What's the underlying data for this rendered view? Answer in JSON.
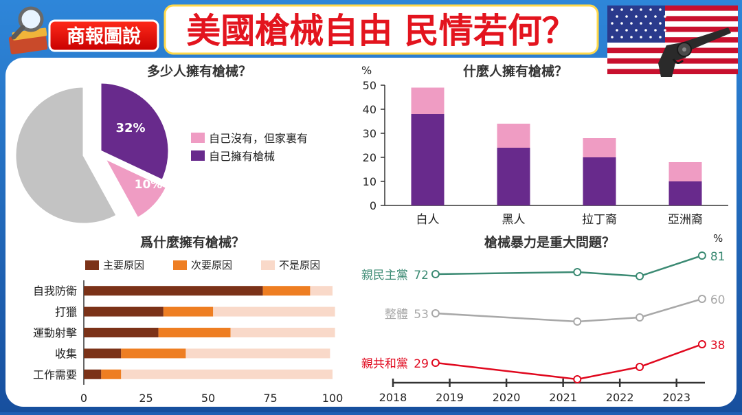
{
  "header": {
    "brand": "商報圖說",
    "title": "美國槍械自由 民情若何？"
  },
  "colors": {
    "purple": "#682a8c",
    "pink": "#ef9cc3",
    "gray": "#c3c3c3",
    "brown": "#7b3218",
    "orange": "#ee7e22",
    "peach": "#f9d9c9",
    "dem": "#3b8a73",
    "overall": "#a8a8a8",
    "rep": "#e0081e"
  },
  "chart_data": [
    {
      "id": "ownership-pie",
      "type": "pie",
      "title": "多少人擁有槍械？",
      "slices": [
        {
          "label": "自己擁有槍械",
          "value": 32,
          "display": "32%"
        },
        {
          "label": "自己沒有，但家裏有",
          "value": 10,
          "display": "10%"
        },
        {
          "label": "",
          "value": 58,
          "display": ""
        }
      ],
      "legend": [
        "自己沒有，但家裏有",
        "自己擁有槍械"
      ]
    },
    {
      "id": "who-owns-bar",
      "type": "bar",
      "title": "什麼人擁有槍械？",
      "ylabel": "%",
      "categories": [
        "白人",
        "黑人",
        "拉丁裔",
        "亞洲裔"
      ],
      "series": [
        {
          "name": "自己擁有槍械",
          "values": [
            38,
            24,
            20,
            10
          ]
        },
        {
          "name": "自己沒有，但家裏有",
          "values": [
            11,
            10,
            8,
            8
          ]
        }
      ],
      "ylim": [
        0,
        50
      ],
      "yticks": [
        0,
        10,
        20,
        30,
        40,
        50
      ]
    },
    {
      "id": "why-own-hbar",
      "type": "bar",
      "orientation": "horizontal",
      "title": "爲什麼擁有槍械？",
      "categories": [
        "自我防衛",
        "打獵",
        "運動射擊",
        "收集",
        "工作需要"
      ],
      "series": [
        {
          "name": "主要原因",
          "values": [
            72,
            32,
            30,
            15,
            7
          ]
        },
        {
          "name": "次要原因",
          "values": [
            19,
            20,
            29,
            26,
            8
          ]
        },
        {
          "name": "不是原因",
          "values": [
            9,
            49,
            42,
            58,
            85
          ]
        }
      ],
      "xlim": [
        0,
        100
      ],
      "xticks": [
        0,
        25,
        50,
        75,
        100
      ]
    },
    {
      "id": "violence-line",
      "type": "line",
      "title": "槍械暴力是重大問題？",
      "unit": "%",
      "xlim": [
        2018,
        2023.5
      ],
      "xticks": [
        2018,
        2019,
        2020,
        2021,
        2022,
        2023
      ],
      "ylim": [
        20,
        85
      ],
      "series": [
        {
          "name": "親民主黨",
          "x": [
            2018.75,
            2021.25,
            2022.35,
            2023.45
          ],
          "y": [
            72,
            73,
            71,
            81
          ],
          "start_label": "72",
          "end_label": "81"
        },
        {
          "name": "整體",
          "x": [
            2018.75,
            2021.25,
            2022.35,
            2023.45
          ],
          "y": [
            53,
            49,
            51,
            60
          ],
          "start_label": "53",
          "end_label": "60"
        },
        {
          "name": "親共和黨",
          "x": [
            2018.75,
            2021.25,
            2022.35,
            2023.45
          ],
          "y": [
            29,
            21,
            27,
            38
          ],
          "start_label": "29",
          "end_label": "38"
        }
      ]
    }
  ]
}
